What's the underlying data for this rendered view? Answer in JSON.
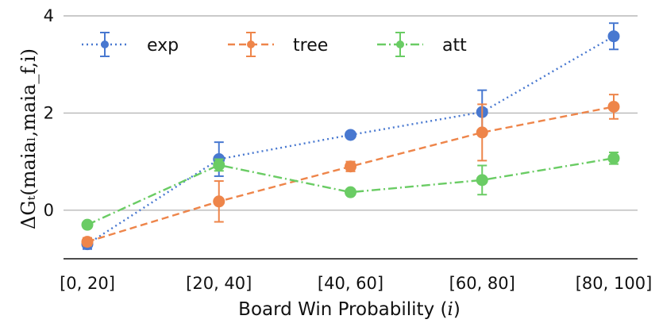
{
  "chart_data": {
    "type": "line",
    "categories": [
      "[0, 20]",
      "[20, 40]",
      "[40, 60]",
      "[60, 80]",
      "[80, 100]"
    ],
    "xlabel": "Board Win Probability (i)",
    "ylabel": "ΔGₜ(maiaₗ,maia_f,i)",
    "ylim": [
      -1,
      4
    ],
    "yticks": [
      0,
      2,
      4
    ],
    "grid": "horizontal",
    "legend_position": "top-left",
    "series": [
      {
        "name": "exp",
        "color": "#4878d0",
        "line_style": "dotted",
        "values": [
          -0.7,
          1.05,
          1.55,
          2.02,
          3.58
        ],
        "error": [
          0.1,
          0.35,
          0.05,
          0.45,
          0.27
        ]
      },
      {
        "name": "tree",
        "color": "#ee854a",
        "line_style": "dashed",
        "values": [
          -0.65,
          0.18,
          0.9,
          1.6,
          2.13
        ],
        "error": [
          0.08,
          0.42,
          0.1,
          0.58,
          0.25
        ]
      },
      {
        "name": "att",
        "color": "#6acc64",
        "line_style": "dashdot",
        "values": [
          -0.3,
          0.93,
          0.37,
          0.62,
          1.07
        ],
        "error": [
          0.06,
          0.12,
          0.05,
          0.3,
          0.12
        ]
      }
    ]
  }
}
